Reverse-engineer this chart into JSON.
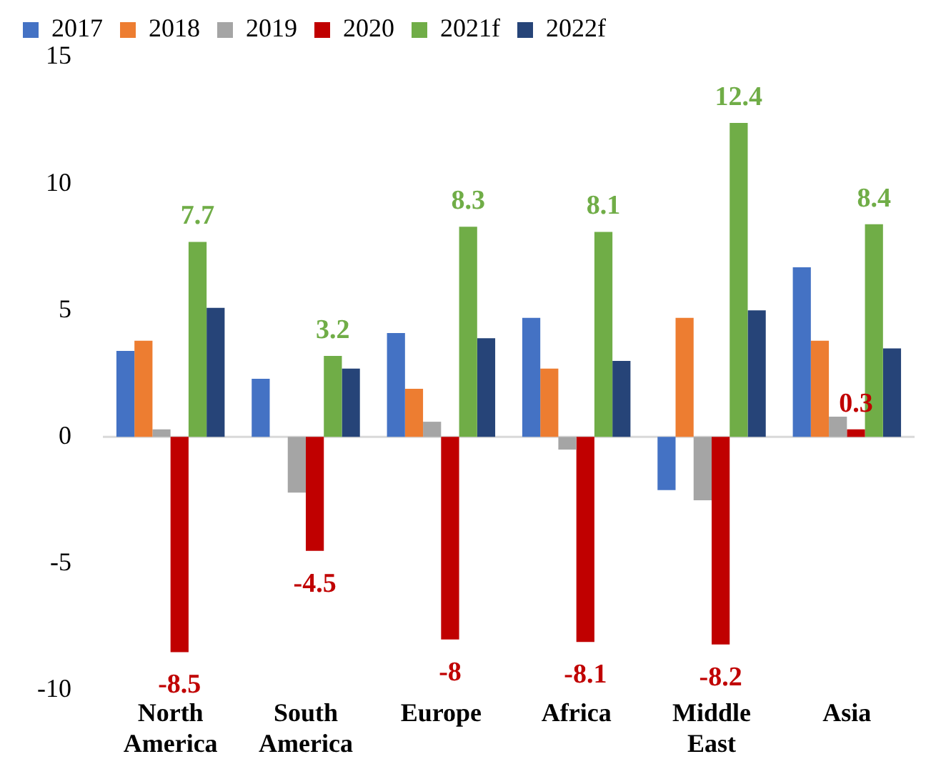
{
  "chart_data": {
    "type": "bar",
    "categories": [
      "North America",
      "South America",
      "Europe",
      "Africa",
      "Middle East",
      "Asia"
    ],
    "series": [
      {
        "name": "2017",
        "color": "#4472c4",
        "values": [
          3.4,
          2.3,
          4.1,
          4.7,
          -2.1,
          6.7
        ]
      },
      {
        "name": "2018",
        "color": "#ed7d31",
        "values": [
          3.8,
          null,
          1.9,
          2.7,
          4.7,
          3.8
        ]
      },
      {
        "name": "2019",
        "color": "#a5a5a5",
        "values": [
          0.3,
          -2.2,
          0.6,
          -0.5,
          -2.5,
          0.8
        ]
      },
      {
        "name": "2020",
        "color": "#c00000",
        "values": [
          -8.5,
          -4.5,
          -8,
          -8.1,
          -8.2,
          0.3
        ],
        "value_labels": [
          "-8.5",
          "-4.5",
          "-8",
          "-8.1",
          "-8.2",
          "0.3"
        ]
      },
      {
        "name": "2021f",
        "color": "#70ad47",
        "values": [
          7.7,
          3.2,
          8.3,
          8.1,
          12.4,
          8.4
        ],
        "value_labels": [
          "7.7",
          "3.2",
          "8.3",
          "8.1",
          "12.4",
          "8.4"
        ]
      },
      {
        "name": "2022f",
        "color": "#264478",
        "values": [
          5.1,
          2.7,
          3.9,
          3.0,
          5.0,
          3.5
        ]
      }
    ],
    "ylim": [
      -10,
      15
    ],
    "yticks": [
      -10,
      -5,
      0,
      5,
      10,
      15
    ],
    "ref_lines": [
      {
        "axis": "y",
        "value": 0,
        "color": "#d9d9d9"
      }
    ],
    "grid": false,
    "legend": "top left"
  }
}
